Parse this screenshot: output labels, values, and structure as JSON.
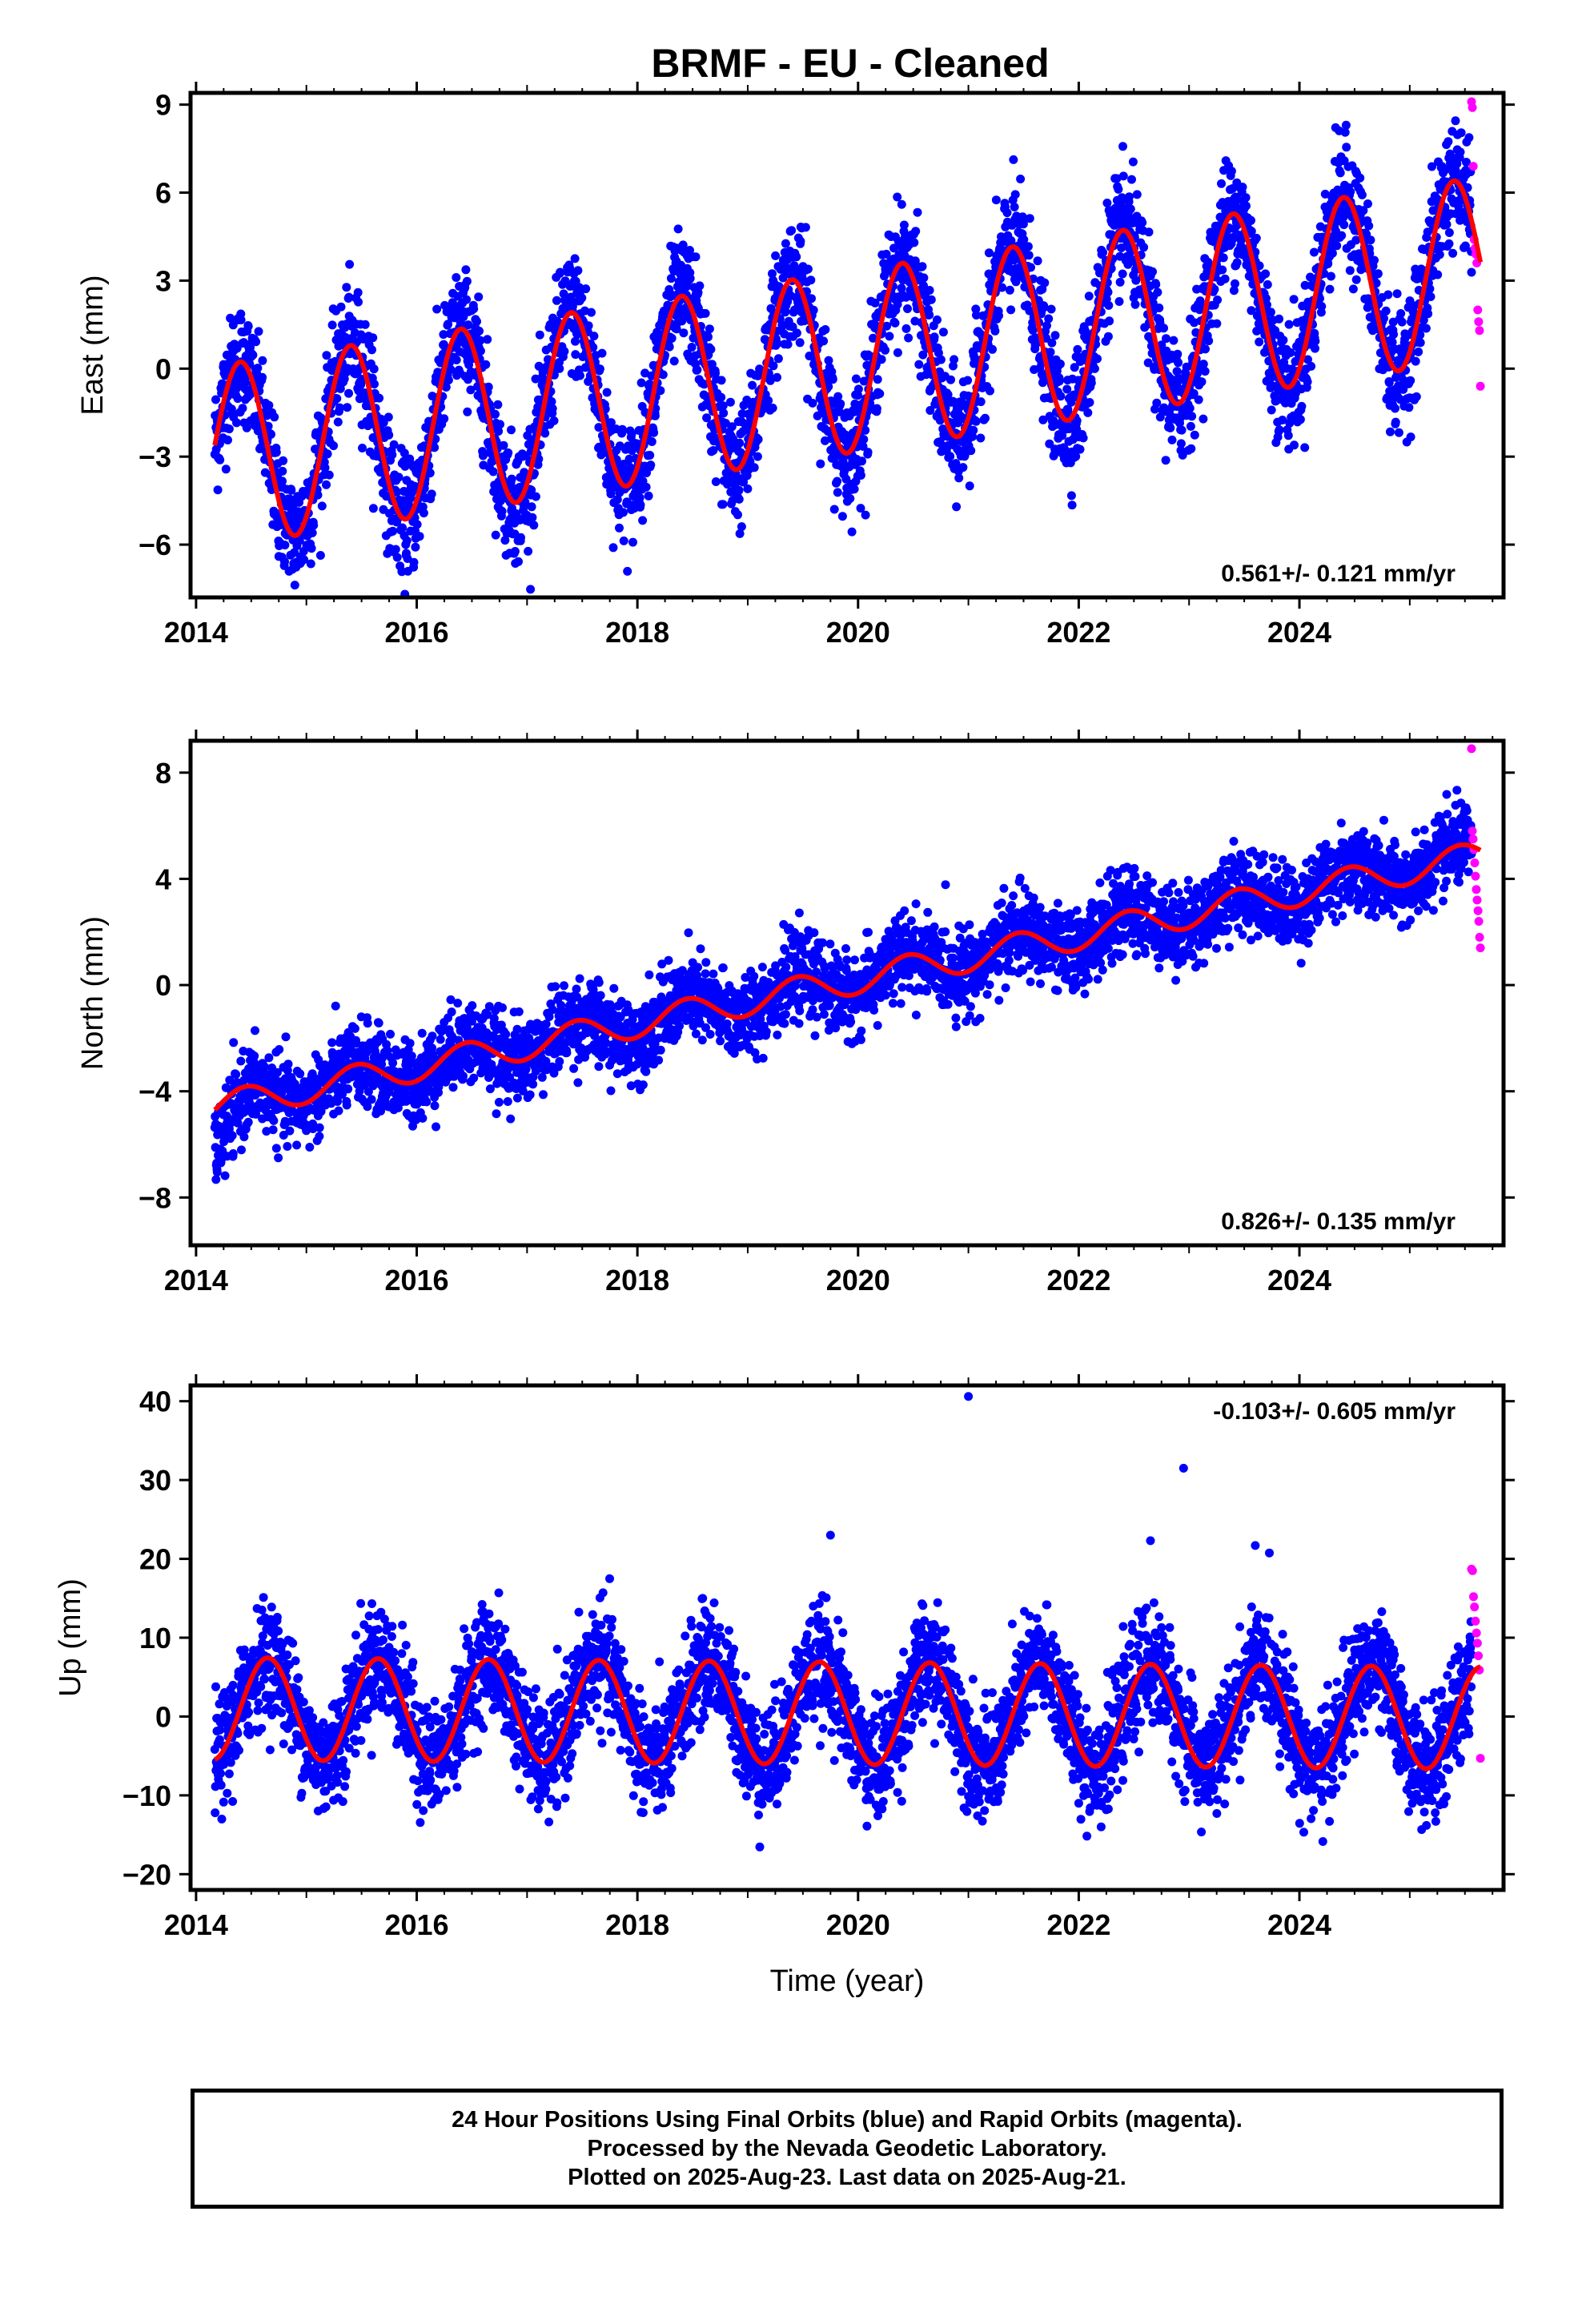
{
  "title": "BRMF  - EU - Cleaned",
  "xlabel": "Time (year)",
  "footer": {
    "line1": "24 Hour Positions Using Final Orbits (blue) and Rapid Orbits (magenta).",
    "line2": "Processed by the Nevada Geodetic Laboratory.",
    "line3": "Plotted on 2025-Aug-23. Last data on 2025-Aug-21."
  },
  "colors": {
    "final_orbits": "#0000ff",
    "rapid_orbits": "#ff00ff",
    "model": "#ff0000",
    "frame": "#000000"
  },
  "chart_data": [
    {
      "type": "scatter",
      "name": "east",
      "ylabel": "East (mm)",
      "xlim": [
        2013.95,
        2025.85
      ],
      "ylim": [
        -7.8,
        9.4
      ],
      "x_ticks": [
        2014,
        2016,
        2018,
        2020,
        2022,
        2024
      ],
      "y_ticks": [
        -6,
        -3,
        0,
        3,
        6,
        9
      ],
      "grid": false,
      "rate_text": "0.561+/- 0.121 mm/yr",
      "rate_position": "bottom-right",
      "data_range": [
        2014.17,
        2025.56
      ],
      "rapid_range": [
        2025.56,
        2025.64
      ],
      "model": {
        "offset_at_start": -3.0,
        "start": 2014.17,
        "trend": 0.561,
        "amplitude": 3.1,
        "peak_phase": 0.4,
        "end_value": 4.2
      },
      "scatter_sigma": 1.0,
      "rapid_values": [
        9.1,
        8.9,
        6.9,
        4.4,
        4.1,
        3.9,
        3.6,
        2.0,
        1.6,
        1.3,
        -0.6
      ]
    },
    {
      "type": "scatter",
      "name": "north",
      "ylabel": "North (mm)",
      "xlim": [
        2013.95,
        2025.85
      ],
      "ylim": [
        -9.8,
        9.2
      ],
      "x_ticks": [
        2014,
        2016,
        2018,
        2020,
        2022,
        2024
      ],
      "y_ticks": [
        -8,
        -4,
        0,
        4,
        8
      ],
      "grid": false,
      "rate_text": "0.826+/- 0.135 mm/yr",
      "rate_position": "bottom-right",
      "data_range": [
        2014.17,
        2025.56
      ],
      "rapid_range": [
        2025.56,
        2025.64
      ],
      "model": {
        "offset_at_start": -4.6,
        "start": 2014.17,
        "trend": 0.826,
        "amplitude": 0.55,
        "peak_phase": 0.45,
        "end_value": 4.6
      },
      "scatter_sigma": 0.75,
      "rapid_values": [
        8.9,
        5.8,
        5.5,
        5.1,
        4.6,
        4.1,
        3.6,
        3.2,
        2.8,
        2.4,
        1.8,
        1.4
      ]
    },
    {
      "type": "scatter",
      "name": "up",
      "ylabel": "Up (mm)",
      "xlim": [
        2013.95,
        2025.85
      ],
      "ylim": [
        -22,
        42
      ],
      "x_ticks": [
        2014,
        2016,
        2018,
        2020,
        2022,
        2024
      ],
      "y_ticks": [
        -20,
        -10,
        0,
        10,
        20,
        30,
        40
      ],
      "grid": false,
      "rate_text": "-0.103+/- 0.605 mm/yr",
      "rate_position": "top-right",
      "data_range": [
        2014.17,
        2025.56
      ],
      "rapid_range": [
        2025.56,
        2025.64
      ],
      "model": {
        "offset_at_start": 1.0,
        "start": 2014.17,
        "trend": -0.103,
        "amplitude": 6.5,
        "peak_phase": 0.65,
        "end_value": 6.0
      },
      "scatter_sigma": 3.5,
      "outliers": [
        [
          2021.0,
          40.6
        ],
        [
          2022.95,
          31.5
        ],
        [
          2019.75,
          23.0
        ],
        [
          2022.65,
          22.3
        ],
        [
          2023.6,
          21.7
        ]
      ],
      "rapid_values": [
        18.7,
        18.5,
        15.2,
        13.9,
        12.1,
        10.6,
        9.3,
        7.7,
        5.9,
        -5.3
      ]
    }
  ]
}
